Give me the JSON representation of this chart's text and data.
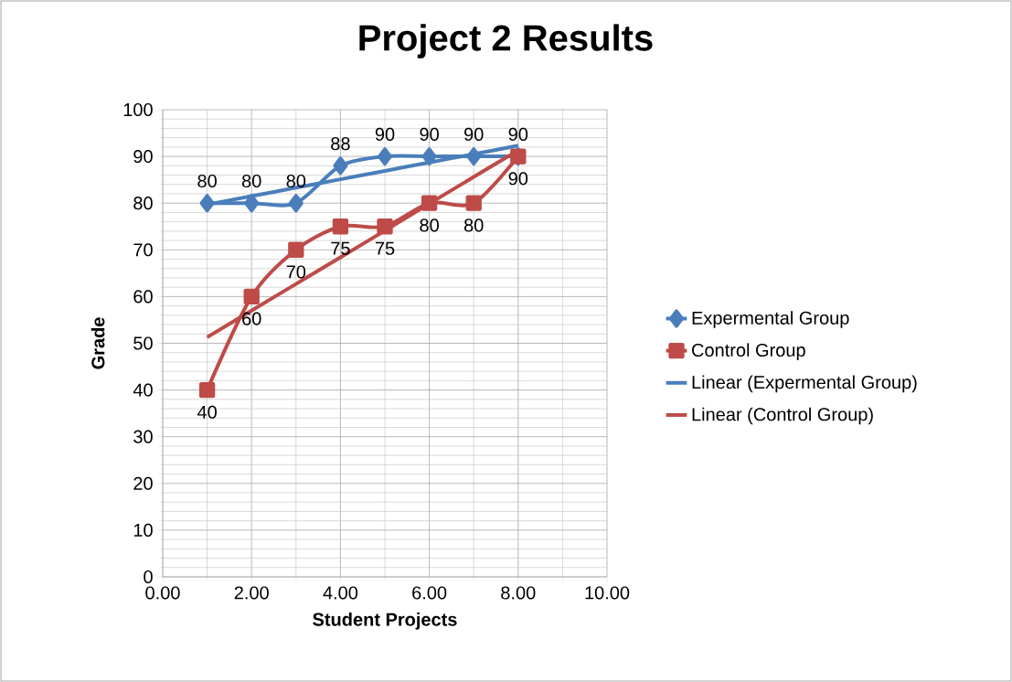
{
  "chart_data": {
    "type": "line",
    "title": "Project 2 Results",
    "xlabel": "Student Projects",
    "ylabel": "Grade",
    "xlim": [
      0,
      10
    ],
    "xticks": [
      {
        "value": 0,
        "label": "0.00"
      },
      {
        "value": 2,
        "label": "2.00"
      },
      {
        "value": 4,
        "label": "4.00"
      },
      {
        "value": 6,
        "label": "6.00"
      },
      {
        "value": 8,
        "label": "8.00"
      },
      {
        "value": 10,
        "label": "10.00"
      }
    ],
    "ylim": [
      0,
      100
    ],
    "yticks": [
      0,
      10,
      20,
      30,
      40,
      50,
      60,
      70,
      80,
      90,
      100
    ],
    "x": [
      1,
      2,
      3,
      4,
      5,
      6,
      7,
      8
    ],
    "series": [
      {
        "name": "Expermental Group",
        "color": "#4a7ebb",
        "marker": "diamond",
        "data_labels": true,
        "values": [
          80,
          80,
          80,
          88,
          90,
          90,
          90,
          90
        ]
      },
      {
        "name": "Control Group",
        "color": "#be4b48",
        "marker": "square",
        "data_labels": true,
        "values": [
          40,
          60,
          70,
          75,
          75,
          80,
          80,
          90
        ]
      },
      {
        "name": "Linear (Expermental Group)",
        "color": "#4a7ebb",
        "marker": "none",
        "values": [
          79.7,
          81.5,
          83.3,
          85.1,
          86.9,
          88.7,
          90.5,
          92.3
        ]
      },
      {
        "name": "Linear (Control Group)",
        "color": "#be4b48",
        "marker": "none",
        "values": [
          51.3,
          57.0,
          62.7,
          68.4,
          74.1,
          79.9,
          85.6,
          91.3
        ]
      }
    ],
    "grid": true,
    "legend": "right",
    "line_style": "solid"
  }
}
